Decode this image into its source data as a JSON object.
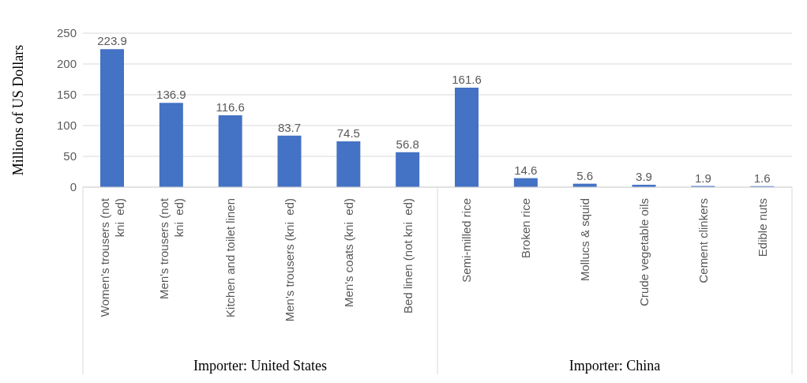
{
  "chart_data": {
    "type": "bar",
    "ylabel": "Millions of US Dollars",
    "categories": [
      "Women's trousers (not kni  ed)",
      "Men's trousers (not kni  ed)",
      "Kitchen and toilet linen",
      "Men's trousers (kni  ed)",
      "Men's coats (kni  ed)",
      "Bed linen (not kni  ed)",
      "Semi-milled rice",
      "Broken rice",
      "Mollucs & squid",
      "Crude vegetable oils",
      "Cement clinkers",
      "Edible nuts"
    ],
    "values": [
      223.9,
      136.9,
      116.6,
      83.7,
      74.5,
      56.8,
      161.6,
      14.6,
      5.6,
      3.9,
      1.9,
      1.6
    ],
    "color": "#4472c4",
    "ylim": [
      0,
      250
    ],
    "yticks": [
      0,
      50,
      100,
      150,
      200,
      250
    ],
    "grid": "y",
    "data_labels": true,
    "legend": false,
    "annotations": [
      "Importer: United States",
      "Importer: China"
    ]
  }
}
